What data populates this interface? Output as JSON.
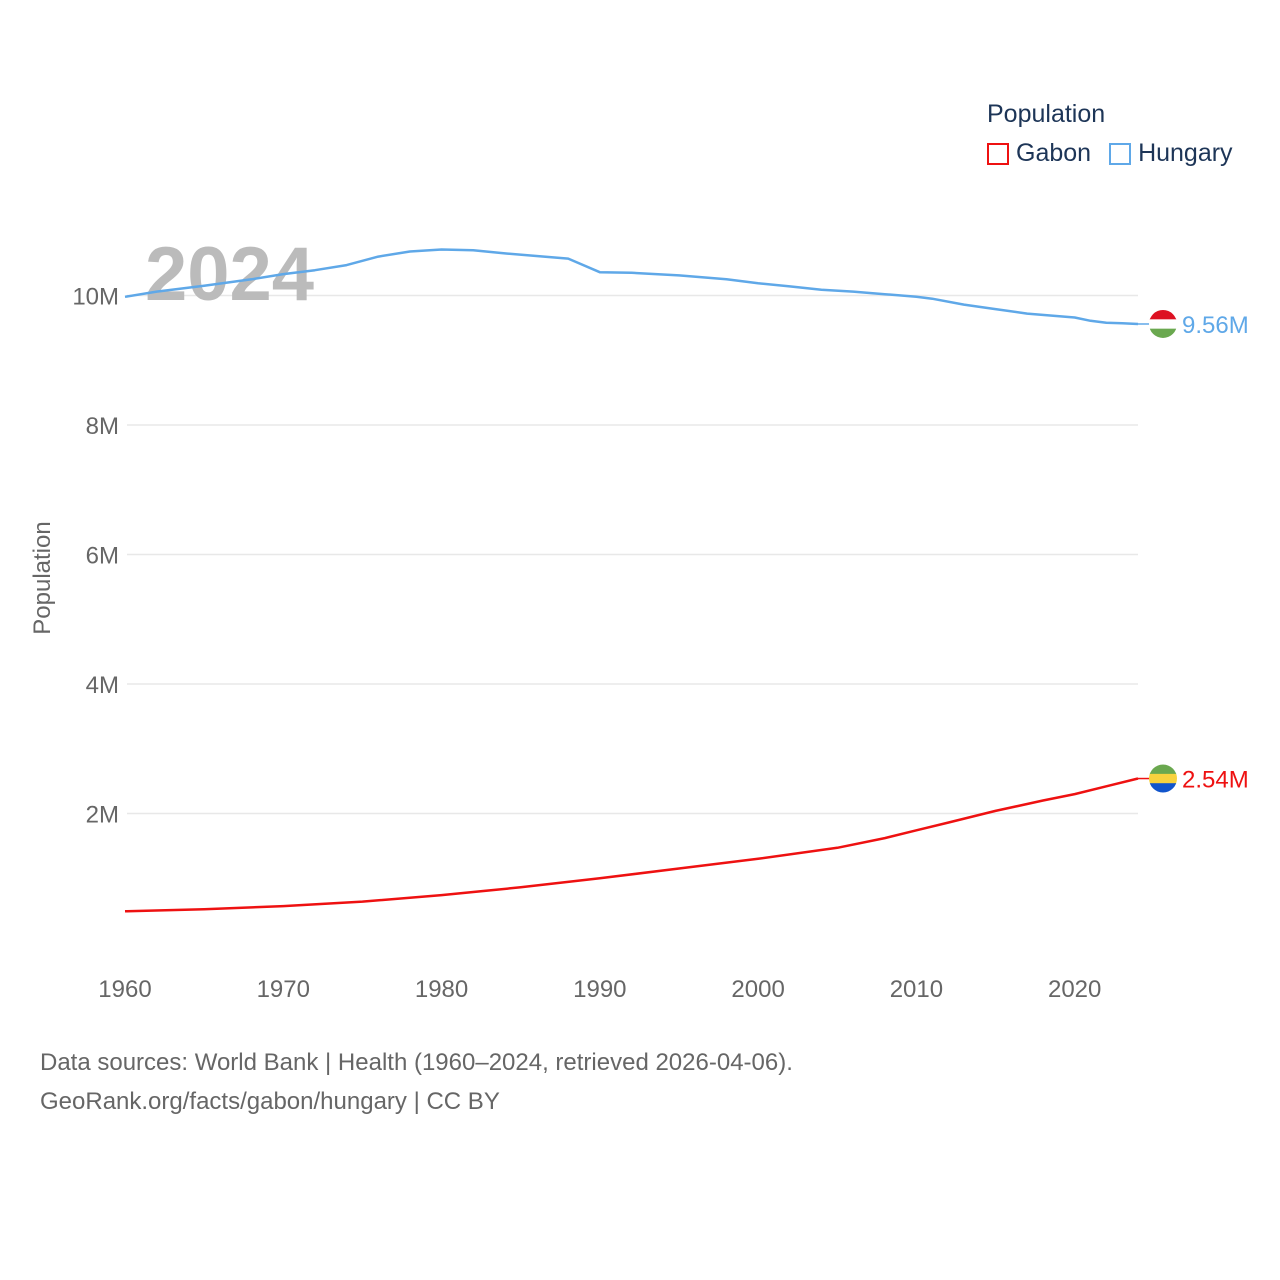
{
  "chart_data": {
    "type": "line",
    "title": "Population",
    "year_watermark": "2024",
    "xlabel": "",
    "ylabel": "Population",
    "xlim": [
      1960,
      2024
    ],
    "ylim": [
      0,
      10800000
    ],
    "x_ticks": [
      1960,
      1970,
      1980,
      1990,
      2000,
      2010,
      2020
    ],
    "x_tick_labels": [
      "1960",
      "1970",
      "1980",
      "1990",
      "2000",
      "2010",
      "2020"
    ],
    "y_ticks": [
      2000000,
      4000000,
      6000000,
      8000000,
      10000000
    ],
    "y_tick_labels": [
      "2M",
      "4M",
      "6M",
      "8M",
      "10M"
    ],
    "grid": true,
    "legend_position": "top-right",
    "series": [
      {
        "name": "Gabon",
        "color": "#ee1111",
        "end_label": "2.54M",
        "flag": "gabon-flag-icon",
        "flag_colors": [
          "#6aa84f",
          "#f7d23e",
          "#1155cc"
        ],
        "points": [
          [
            1960,
            490000
          ],
          [
            1965,
            520000
          ],
          [
            1970,
            570000
          ],
          [
            1975,
            640000
          ],
          [
            1980,
            740000
          ],
          [
            1985,
            860000
          ],
          [
            1990,
            1000000
          ],
          [
            1995,
            1150000
          ],
          [
            2000,
            1300000
          ],
          [
            2005,
            1470000
          ],
          [
            2008,
            1620000
          ],
          [
            2010,
            1740000
          ],
          [
            2012,
            1860000
          ],
          [
            2015,
            2040000
          ],
          [
            2018,
            2200000
          ],
          [
            2020,
            2300000
          ],
          [
            2022,
            2420000
          ],
          [
            2024,
            2540000
          ]
        ]
      },
      {
        "name": "Hungary",
        "color": "#5fa8e8",
        "end_label": "9.56M",
        "flag": "hungary-flag-icon",
        "flag_colors": [
          "#dd1122",
          "#ffffff",
          "#6aa84f"
        ],
        "points": [
          [
            1960,
            9980000
          ],
          [
            1962,
            10060000
          ],
          [
            1965,
            10150000
          ],
          [
            1968,
            10250000
          ],
          [
            1970,
            10330000
          ],
          [
            1972,
            10390000
          ],
          [
            1974,
            10470000
          ],
          [
            1976,
            10600000
          ],
          [
            1978,
            10680000
          ],
          [
            1980,
            10710000
          ],
          [
            1982,
            10700000
          ],
          [
            1984,
            10650000
          ],
          [
            1986,
            10610000
          ],
          [
            1988,
            10570000
          ],
          [
            1990,
            10360000
          ],
          [
            1992,
            10350000
          ],
          [
            1995,
            10310000
          ],
          [
            1998,
            10250000
          ],
          [
            2000,
            10190000
          ],
          [
            2002,
            10140000
          ],
          [
            2004,
            10090000
          ],
          [
            2006,
            10060000
          ],
          [
            2008,
            10020000
          ],
          [
            2010,
            9980000
          ],
          [
            2011,
            9950000
          ],
          [
            2013,
            9860000
          ],
          [
            2015,
            9790000
          ],
          [
            2017,
            9720000
          ],
          [
            2020,
            9660000
          ],
          [
            2021,
            9610000
          ],
          [
            2022,
            9580000
          ],
          [
            2023,
            9570000
          ],
          [
            2024,
            9560000
          ]
        ]
      }
    ]
  },
  "footer": {
    "line1": "Data sources: World Bank | Health (1960–2024, retrieved 2026-04-06).",
    "line2": "GeoRank.org/facts/gabon/hungary | CC BY"
  }
}
